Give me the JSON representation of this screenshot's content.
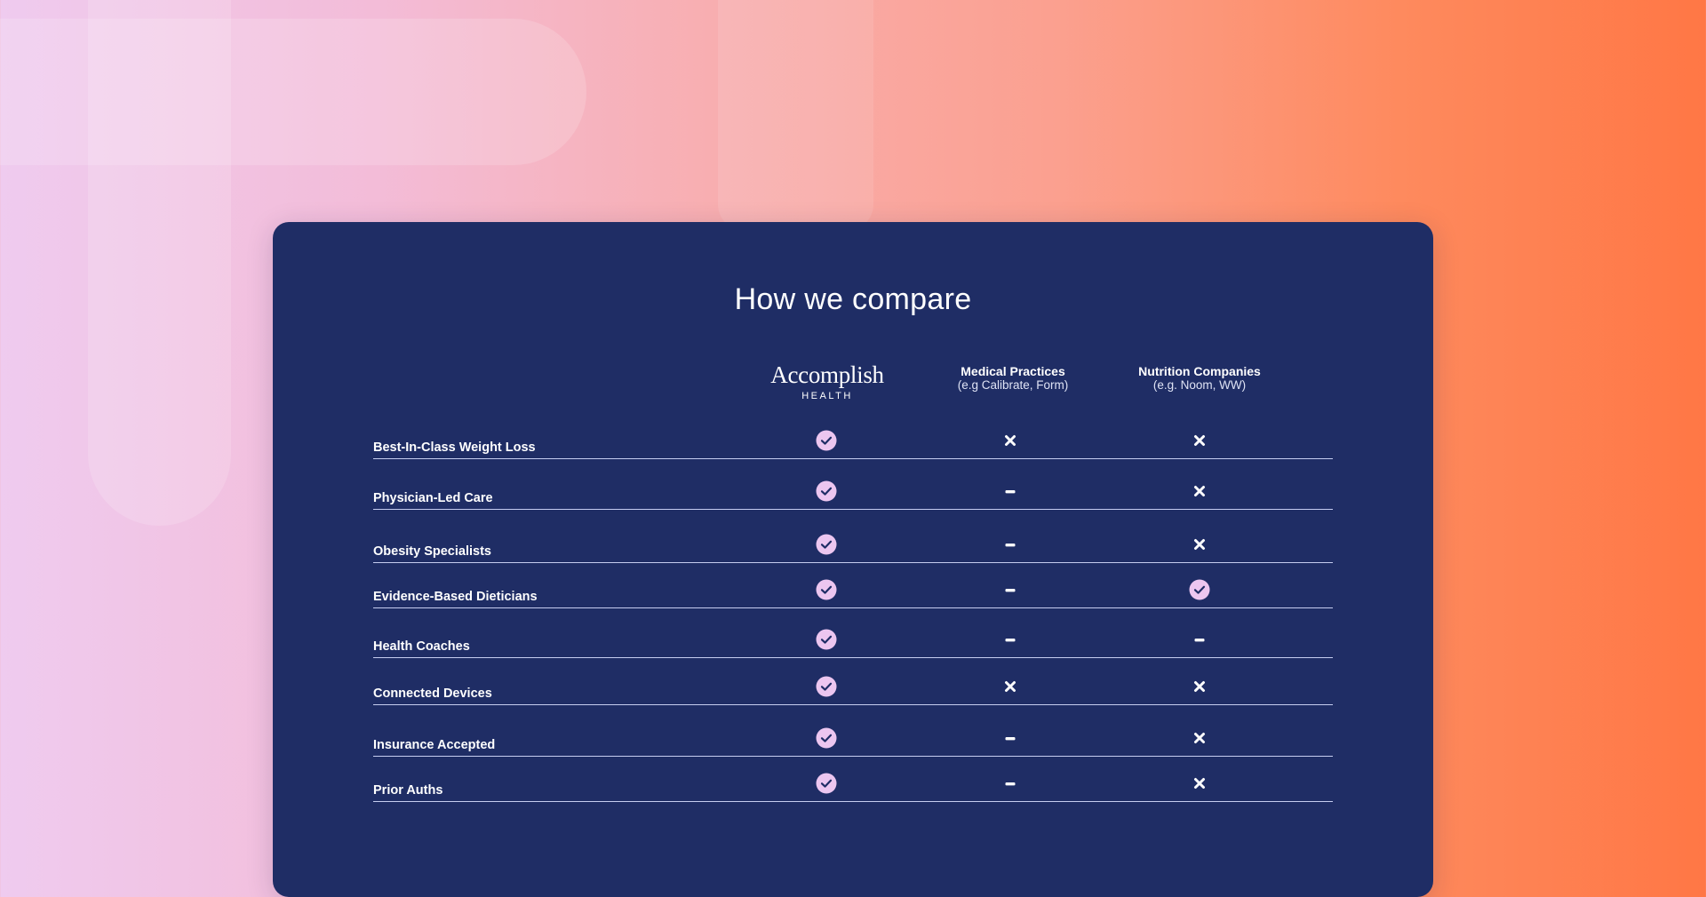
{
  "title": "How we compare",
  "columns": {
    "brand": {
      "name": "Accomplish",
      "sub": "HEALTH"
    },
    "medical": {
      "name": "Medical Practices",
      "sub": "(e.g Calibrate, Form)"
    },
    "nutrition": {
      "name": "Nutrition Companies",
      "sub": "(e.g. Noom, WW)"
    }
  },
  "rows": [
    {
      "label": "Best-In-Class Weight Loss",
      "accomplish": "check",
      "medical": "cross",
      "nutrition": "cross"
    },
    {
      "label": "Physician-Led Care",
      "accomplish": "check",
      "medical": "dash",
      "nutrition": "cross"
    },
    {
      "label": "Obesity Specialists",
      "accomplish": "check",
      "medical": "dash",
      "nutrition": "cross"
    },
    {
      "label": "Evidence-Based Dieticians",
      "accomplish": "check",
      "medical": "dash",
      "nutrition": "check"
    },
    {
      "label": "Health Coaches",
      "accomplish": "check",
      "medical": "dash",
      "nutrition": "dash"
    },
    {
      "label": "Connected Devices",
      "accomplish": "check",
      "medical": "cross",
      "nutrition": "cross"
    },
    {
      "label": "Insurance Accepted",
      "accomplish": "check",
      "medical": "dash",
      "nutrition": "cross"
    },
    {
      "label": "Prior Auths",
      "accomplish": "check",
      "medical": "dash",
      "nutrition": "cross"
    }
  ],
  "colors": {
    "card": "#1f2d65",
    "check_fill": "#ecc6f0",
    "check_stroke": "#1f2d65",
    "mark_white": "#ffffff"
  }
}
